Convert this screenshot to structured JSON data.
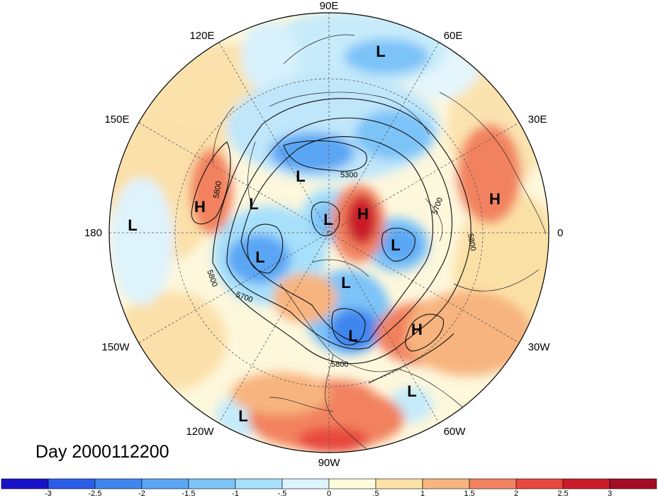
{
  "title": "Day 2000112200",
  "longitude_labels": [
    {
      "key": "90e",
      "text": "90E"
    },
    {
      "key": "60e",
      "text": "60E"
    },
    {
      "key": "120e",
      "text": "120E"
    },
    {
      "key": "30e",
      "text": "30E"
    },
    {
      "key": "150e",
      "text": "150E"
    },
    {
      "key": "0",
      "text": "0"
    },
    {
      "key": "180",
      "text": "180"
    },
    {
      "key": "30w",
      "text": "30W"
    },
    {
      "key": "150w",
      "text": "150W"
    },
    {
      "key": "60w",
      "text": "60W"
    },
    {
      "key": "120w",
      "text": "120W"
    },
    {
      "key": "90w",
      "text": "90W"
    }
  ],
  "pressure_centers": [
    {
      "type": "L",
      "label": "L"
    },
    {
      "type": "L",
      "label": "L"
    },
    {
      "type": "L",
      "label": "L"
    },
    {
      "type": "L",
      "label": "L"
    },
    {
      "type": "L",
      "label": "L"
    },
    {
      "type": "L",
      "label": "L"
    },
    {
      "type": "L",
      "label": "L"
    },
    {
      "type": "L",
      "label": "L"
    },
    {
      "type": "L",
      "label": "L"
    },
    {
      "type": "L",
      "label": "L"
    },
    {
      "type": "L",
      "label": "L"
    },
    {
      "type": "H",
      "label": "H"
    },
    {
      "type": "H",
      "label": "H"
    },
    {
      "type": "H",
      "label": "H"
    },
    {
      "type": "H",
      "label": "H"
    }
  ],
  "contour_labels": [
    "5300",
    "5800",
    "5800",
    "5800",
    "5700",
    "5800",
    "5700"
  ],
  "colorbar": {
    "ticks": [
      "-3",
      "-2.5",
      "-2",
      "-1.5",
      "-1",
      "-.5",
      "0",
      ".5",
      "1",
      "1.5",
      "2",
      "2.5",
      "3"
    ],
    "colors": [
      "#1a12c8",
      "#2a5ee8",
      "#3f86ef",
      "#5aa6f4",
      "#7cc3f8",
      "#a7e0fb",
      "#def4fd",
      "#fefbdc",
      "#fbe2a6",
      "#f7b47e",
      "#f2825f",
      "#e8483e",
      "#cc1c2a",
      "#a30d25"
    ]
  }
}
